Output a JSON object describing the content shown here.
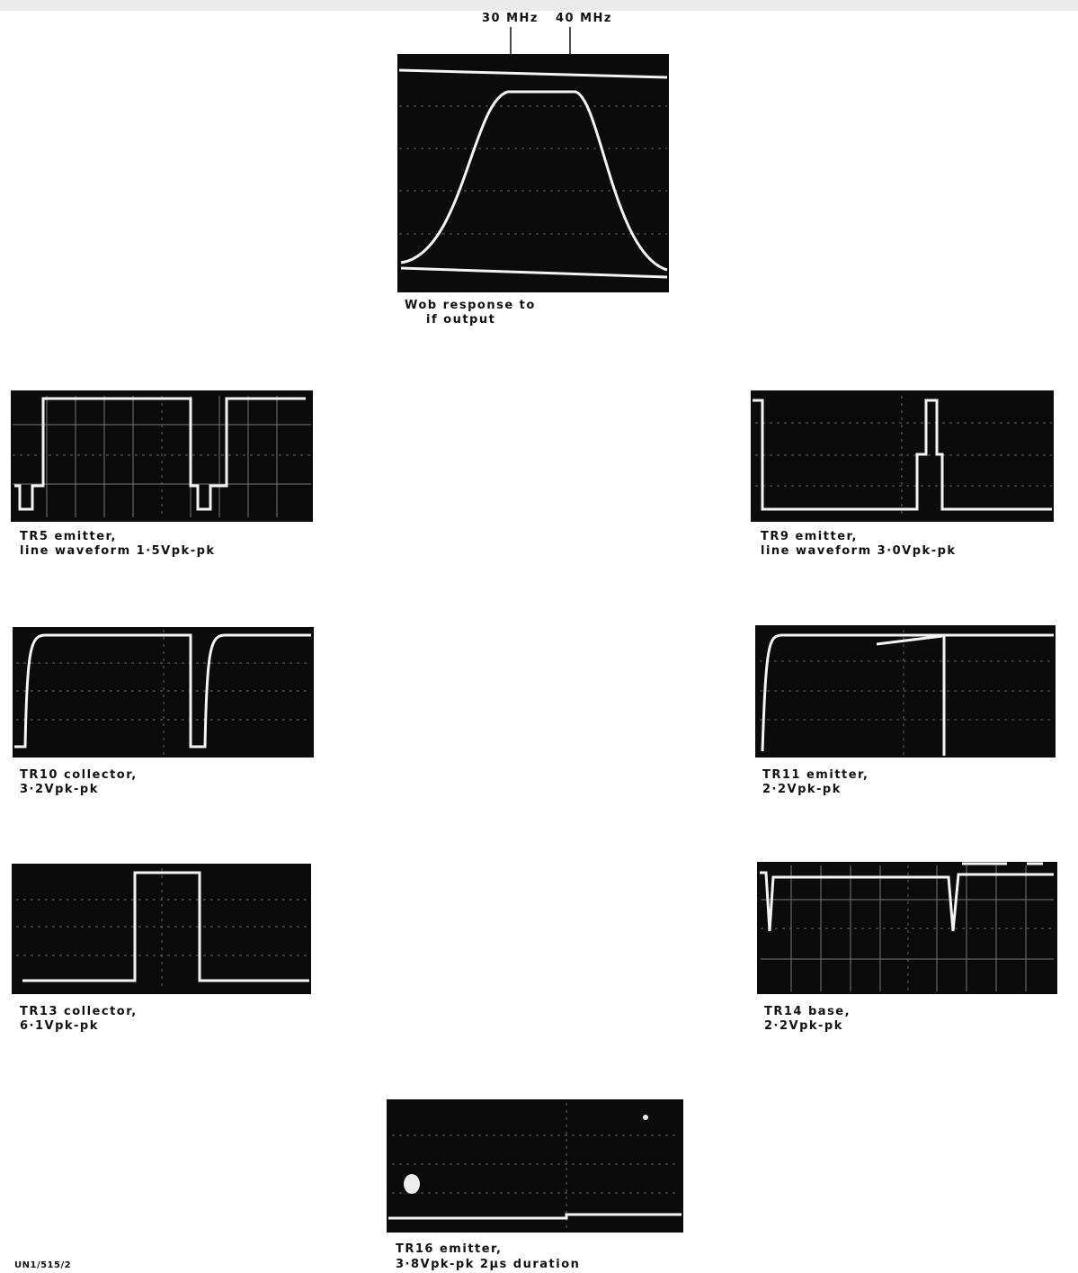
{
  "markers": [
    "30 MHz",
    "40 MHz"
  ],
  "traces": [
    {
      "caption": [
        "Wob response to",
        "if output"
      ]
    },
    {
      "caption": [
        "TR5 emitter,",
        "line waveform 1·5Vpk-pk"
      ]
    },
    {
      "caption": [
        "TR9 emitter,",
        "line waveform 3·0Vpk-pk"
      ]
    },
    {
      "caption": [
        "TR10 collector,",
        "3·2Vpk-pk"
      ]
    },
    {
      "caption": [
        "TR11 emitter,",
        "2·2Vpk-pk"
      ]
    },
    {
      "caption": [
        "TR13 collector,",
        "6·1Vpk-pk"
      ]
    },
    {
      "caption": [
        "TR14 base,",
        "2·2Vpk-pk"
      ]
    },
    {
      "caption": [
        "TR16 emitter,",
        "3·8Vpk-pk 2µs duration"
      ]
    }
  ],
  "footer": "UN1/515/2"
}
